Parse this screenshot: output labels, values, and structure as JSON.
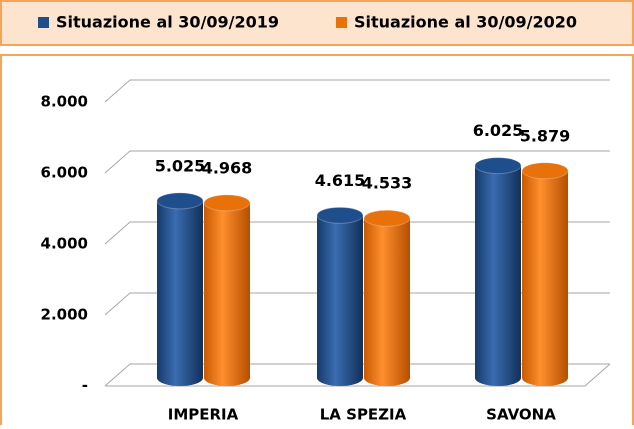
{
  "chart_data": {
    "type": "bar3d",
    "categories": [
      "IMPERIA",
      "LA SPEZIA",
      "SAVONA"
    ],
    "series": [
      {
        "name": "Situazione al 30/09/2019",
        "color": "#1f4e8c",
        "values": [
          5025,
          4615,
          6025
        ],
        "value_labels": [
          "5.025",
          "4.615",
          "6.025"
        ]
      },
      {
        "name": "Situazione al 30/09/2020",
        "color": "#e8710a",
        "values": [
          4968,
          4533,
          5879
        ],
        "value_labels": [
          "4.968",
          "4.533",
          "5.879"
        ]
      }
    ],
    "ylim": [
      0,
      8000
    ],
    "yticks": [
      {
        "value": 0,
        "label": "-"
      },
      {
        "value": 2000,
        "label": "2.000"
      },
      {
        "value": 4000,
        "label": "4.000"
      },
      {
        "value": 6000,
        "label": "6.000"
      },
      {
        "value": 8000,
        "label": "8.000"
      }
    ],
    "grid": true,
    "legend": "top"
  }
}
